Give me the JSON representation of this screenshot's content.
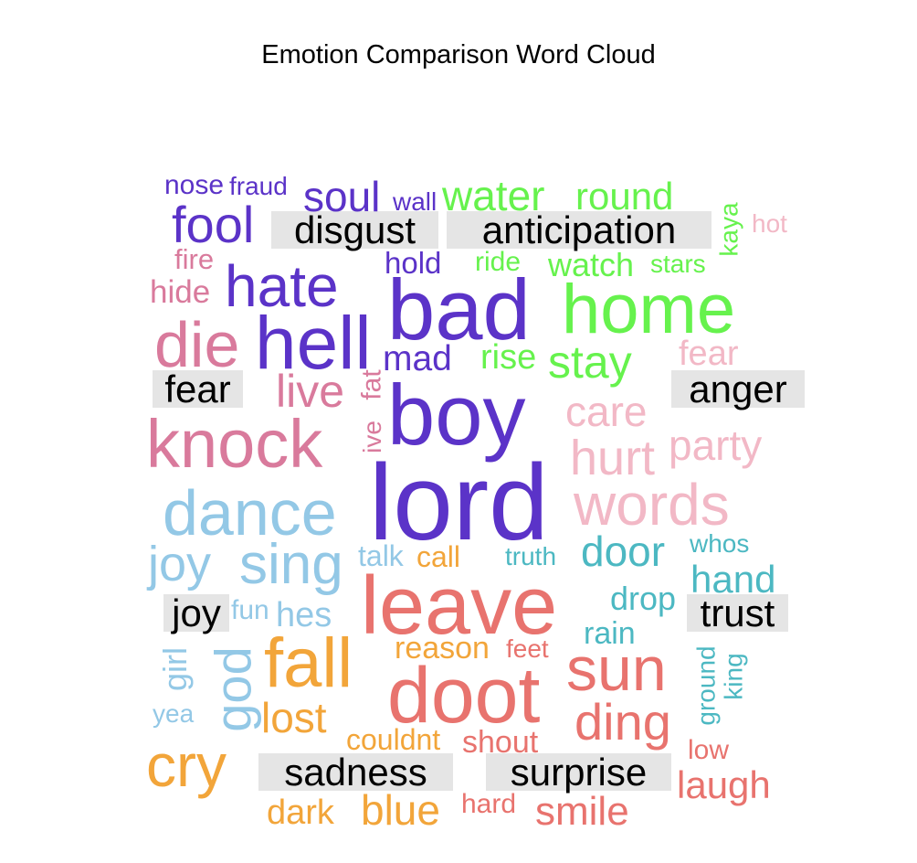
{
  "chart_data": {
    "type": "comparison word cloud",
    "title": "Emotion Comparison Word Cloud",
    "groups": [
      {
        "name": "disgust",
        "color": "#5b33c8",
        "words": [
          "nose",
          "fraud",
          "soul",
          "wall",
          "fool",
          "hate",
          "hold",
          "bad",
          "hell",
          "mad",
          "boy",
          "lord"
        ]
      },
      {
        "name": "anticipation",
        "color": "#66f24d",
        "words": [
          "water",
          "round",
          "kaya",
          "ride",
          "watch",
          "stars",
          "home",
          "rise",
          "stay"
        ]
      },
      {
        "name": "fear",
        "color": "#d97a9c",
        "words": [
          "fire",
          "hide",
          "die",
          "live",
          "fat",
          "knock",
          "ive"
        ]
      },
      {
        "name": "anger",
        "color": "#f2b8c6",
        "words": [
          "hot",
          "fear",
          "care",
          "hurt",
          "party",
          "words"
        ]
      },
      {
        "name": "joy",
        "color": "#93c8e6",
        "words": [
          "dance",
          "joy",
          "sing",
          "talk",
          "fun",
          "hes",
          "girl",
          "god",
          "yea"
        ]
      },
      {
        "name": "trust",
        "color": "#4cb8c2",
        "words": [
          "truth",
          "door",
          "whos",
          "hand",
          "drop",
          "rain",
          "ground",
          "king"
        ]
      },
      {
        "name": "sadness",
        "color": "#f2a53a",
        "words": [
          "call",
          "fall",
          "reason",
          "lost",
          "couldnt",
          "cry",
          "dark",
          "blue"
        ]
      },
      {
        "name": "surprise",
        "color": "#e8736e",
        "words": [
          "leave",
          "feet",
          "sun",
          "doot",
          "ding",
          "shout",
          "low",
          "laugh",
          "hard",
          "smile"
        ]
      }
    ]
  }
}
